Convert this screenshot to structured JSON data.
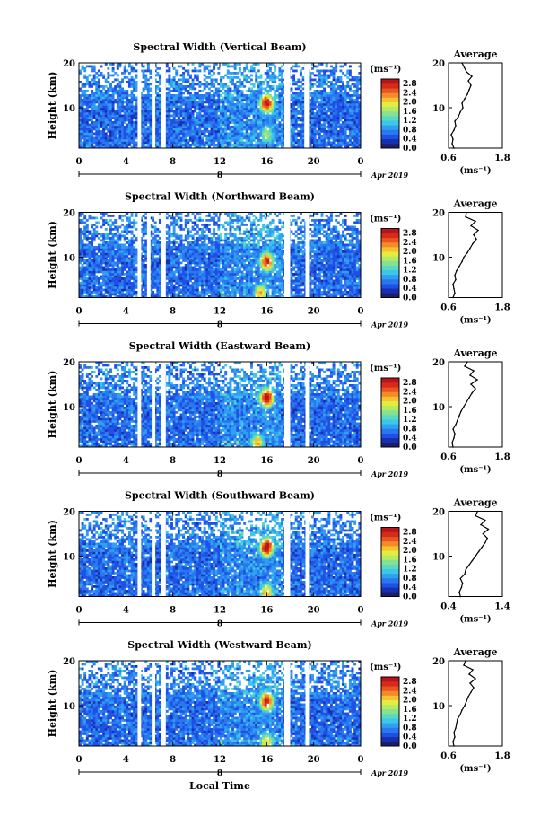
{
  "figure": {
    "bottom_xlabel": "Local Time",
    "date_label": "Apr 2019"
  },
  "colormap": [
    "#1b1f6b",
    "#1730b0",
    "#1f50e6",
    "#2a78f0",
    "#2fa0f0",
    "#3cc6e8",
    "#5ad8c0",
    "#86e290",
    "#b6ea62",
    "#e4ec40",
    "#f6c030",
    "#f48a28",
    "#e85422",
    "#d62a1a",
    "#b8141a"
  ],
  "chart_data": [
    {
      "type": "heatmap",
      "title": "Spectral Width (Vertical Beam)",
      "ylabel": "Height (km)",
      "x_ticks": [
        "0",
        "4",
        "8",
        "12",
        "16",
        "20",
        "0"
      ],
      "xlim": [
        0,
        24
      ],
      "y_ticks": [
        "10",
        "20"
      ],
      "ylim": [
        1,
        20
      ],
      "colorbar": {
        "label": "(ms⁻¹)",
        "ticks": [
          "0.0",
          "0.4",
          "0.8",
          "1.2",
          "1.6",
          "2.0",
          "2.4",
          "2.8"
        ],
        "range": [
          0,
          3.0
        ]
      },
      "gaps_hours": [
        [
          5.0,
          5.3
        ],
        [
          6.2,
          6.5
        ],
        [
          7.0,
          7.4
        ],
        [
          17.5,
          18.0
        ],
        [
          19.2,
          19.6
        ]
      ],
      "hotspots": [
        {
          "x_hour": 16,
          "y_km": 11,
          "value": 2.8
        },
        {
          "x_hour": 16,
          "y_km": 4,
          "value": 1.6
        }
      ],
      "profile": {
        "title": "Average",
        "xlabel": "(ms⁻¹)",
        "x_ticks": [
          "0.6",
          "1.8"
        ],
        "xlim": [
          0.6,
          1.8
        ],
        "y_ticks": [
          "10",
          "20"
        ],
        "heights_km": [
          1,
          2,
          3,
          4,
          5,
          6,
          7,
          8,
          9,
          10,
          11,
          12,
          13,
          14,
          15,
          16,
          17,
          18,
          19,
          20
        ],
        "values": [
          0.72,
          0.68,
          0.7,
          0.66,
          0.72,
          0.76,
          0.74,
          0.82,
          0.86,
          0.92,
          0.9,
          0.96,
          1.02,
          1.06,
          1.1,
          1.04,
          1.12,
          1.0,
          0.95,
          0.9
        ]
      }
    },
    {
      "type": "heatmap",
      "title": "Spectral Width (Northward Beam)",
      "ylabel": "Height (km)",
      "x_ticks": [
        "0",
        "4",
        "8",
        "12",
        "16",
        "20",
        "0"
      ],
      "xlim": [
        0,
        24
      ],
      "y_ticks": [
        "10",
        "20"
      ],
      "ylim": [
        1,
        20
      ],
      "colorbar": {
        "label": "(ms⁻¹)",
        "ticks": [
          "0.0",
          "0.4",
          "0.8",
          "1.2",
          "1.6",
          "2.0",
          "2.4",
          "2.8"
        ],
        "range": [
          0,
          3.0
        ]
      },
      "gaps_hours": [
        [
          5.0,
          5.3
        ],
        [
          5.8,
          6.1
        ],
        [
          7.0,
          7.4
        ],
        [
          17.5,
          18.0
        ],
        [
          19.3,
          19.6
        ]
      ],
      "hotspots": [
        {
          "x_hour": 16,
          "y_km": 9,
          "value": 2.6
        },
        {
          "x_hour": 15.5,
          "y_km": 2,
          "value": 2.0
        }
      ],
      "profile": {
        "title": "Average",
        "xlabel": "(ms⁻¹)",
        "x_ticks": [
          "0.6",
          "1.8"
        ],
        "xlim": [
          0.6,
          1.8
        ],
        "y_ticks": [
          "10",
          "20"
        ],
        "heights_km": [
          1,
          2,
          3,
          4,
          5,
          6,
          7,
          8,
          9,
          10,
          11,
          12,
          13,
          14,
          15,
          16,
          17,
          18,
          19,
          20
        ],
        "values": [
          0.7,
          0.74,
          0.72,
          0.7,
          0.76,
          0.74,
          0.78,
          0.84,
          0.9,
          0.94,
          1.02,
          1.08,
          1.14,
          1.22,
          1.16,
          1.26,
          1.1,
          1.2,
          0.98,
          1.0
        ]
      }
    },
    {
      "type": "heatmap",
      "title": "Spectral Width (Eastward Beam)",
      "ylabel": "Height (km)",
      "x_ticks": [
        "0",
        "4",
        "8",
        "12",
        "16",
        "20",
        "0"
      ],
      "xlim": [
        0,
        24
      ],
      "y_ticks": [
        "10",
        "20"
      ],
      "ylim": [
        1,
        20
      ],
      "colorbar": {
        "label": "(ms⁻¹)",
        "ticks": [
          "0.0",
          "0.4",
          "0.8",
          "1.2",
          "1.6",
          "2.0",
          "2.4",
          "2.8"
        ],
        "range": [
          0,
          3.0
        ]
      },
      "gaps_hours": [
        [
          5.0,
          5.3
        ],
        [
          6.2,
          6.5
        ],
        [
          7.0,
          7.4
        ],
        [
          17.5,
          18.0
        ],
        [
          19.3,
          19.6
        ]
      ],
      "hotspots": [
        {
          "x_hour": 16,
          "y_km": 12,
          "value": 2.9
        },
        {
          "x_hour": 15.2,
          "y_km": 2,
          "value": 2.0
        }
      ],
      "profile": {
        "title": "Average",
        "xlabel": "(ms⁻¹)",
        "x_ticks": [
          "0.6",
          "1.8"
        ],
        "xlim": [
          0.6,
          1.8
        ],
        "y_ticks": [
          "10",
          "20"
        ],
        "heights_km": [
          1,
          2,
          3,
          4,
          5,
          6,
          7,
          8,
          9,
          10,
          11,
          12,
          13,
          14,
          15,
          16,
          17,
          18,
          19,
          20
        ],
        "values": [
          0.7,
          0.68,
          0.72,
          0.74,
          0.7,
          0.76,
          0.8,
          0.84,
          0.88,
          0.94,
          1.0,
          1.06,
          1.12,
          1.2,
          1.1,
          1.24,
          1.08,
          1.16,
          0.96,
          1.02
        ]
      }
    },
    {
      "type": "heatmap",
      "title": "Spectral Width (Southward Beam)",
      "ylabel": "Height (km)",
      "x_ticks": [
        "0",
        "4",
        "8",
        "12",
        "16",
        "20",
        "0"
      ],
      "xlim": [
        0,
        24
      ],
      "y_ticks": [
        "10",
        "20"
      ],
      "ylim": [
        1,
        20
      ],
      "colorbar": {
        "label": "(ms⁻¹)",
        "ticks": [
          "0.0",
          "0.4",
          "0.8",
          "1.2",
          "1.6",
          "2.0",
          "2.4",
          "2.8"
        ],
        "range": [
          0,
          3.0
        ]
      },
      "gaps_hours": [
        [
          5.0,
          5.3
        ],
        [
          6.2,
          6.5
        ],
        [
          7.0,
          7.4
        ],
        [
          17.5,
          18.0
        ],
        [
          19.3,
          19.6
        ]
      ],
      "hotspots": [
        {
          "x_hour": 16,
          "y_km": 12,
          "value": 2.9
        },
        {
          "x_hour": 16,
          "y_km": 2,
          "value": 2.0
        }
      ],
      "profile": {
        "title": "Average",
        "xlabel": "(ms⁻¹)",
        "x_ticks": [
          "0.4",
          "1.4"
        ],
        "xlim": [
          0.4,
          1.4
        ],
        "y_ticks": [
          "10",
          "20"
        ],
        "heights_km": [
          1,
          2,
          3,
          4,
          5,
          6,
          7,
          8,
          9,
          10,
          11,
          12,
          13,
          14,
          15,
          16,
          17,
          18,
          19,
          20
        ],
        "values": [
          0.62,
          0.6,
          0.64,
          0.66,
          0.62,
          0.7,
          0.72,
          0.78,
          0.84,
          0.9,
          0.96,
          1.02,
          1.08,
          1.12,
          1.04,
          1.14,
          1.0,
          1.08,
          0.9,
          0.94
        ]
      }
    },
    {
      "type": "heatmap",
      "title": "Spectral Width (Westward Beam)",
      "ylabel": "Height (km)",
      "x_ticks": [
        "0",
        "4",
        "8",
        "12",
        "16",
        "20",
        "0"
      ],
      "xlim": [
        0,
        24
      ],
      "y_ticks": [
        "10",
        "20"
      ],
      "ylim": [
        1,
        20
      ],
      "colorbar": {
        "label": "(ms⁻¹)",
        "ticks": [
          "0.0",
          "0.4",
          "0.8",
          "1.2",
          "1.6",
          "2.0",
          "2.4",
          "2.8"
        ],
        "range": [
          0,
          3.0
        ]
      },
      "gaps_hours": [
        [
          5.0,
          5.3
        ],
        [
          6.2,
          6.5
        ],
        [
          7.0,
          7.4
        ],
        [
          17.5,
          18.0
        ],
        [
          19.3,
          19.6
        ]
      ],
      "hotspots": [
        {
          "x_hour": 16,
          "y_km": 11,
          "value": 2.7
        },
        {
          "x_hour": 16,
          "y_km": 2,
          "value": 1.8
        }
      ],
      "profile": {
        "title": "Average",
        "xlabel": "(ms⁻¹)",
        "x_ticks": [
          "0.6",
          "1.8"
        ],
        "xlim": [
          0.6,
          1.8
        ],
        "y_ticks": [
          "10",
          "20"
        ],
        "heights_km": [
          1,
          2,
          3,
          4,
          5,
          6,
          7,
          8,
          9,
          10,
          11,
          12,
          13,
          14,
          15,
          16,
          17,
          18,
          19,
          20
        ],
        "values": [
          0.72,
          0.7,
          0.74,
          0.72,
          0.76,
          0.78,
          0.8,
          0.86,
          0.9,
          0.96,
          1.0,
          1.04,
          1.1,
          1.16,
          1.08,
          1.2,
          1.06,
          1.14,
          0.94,
          0.98
        ]
      }
    }
  ]
}
